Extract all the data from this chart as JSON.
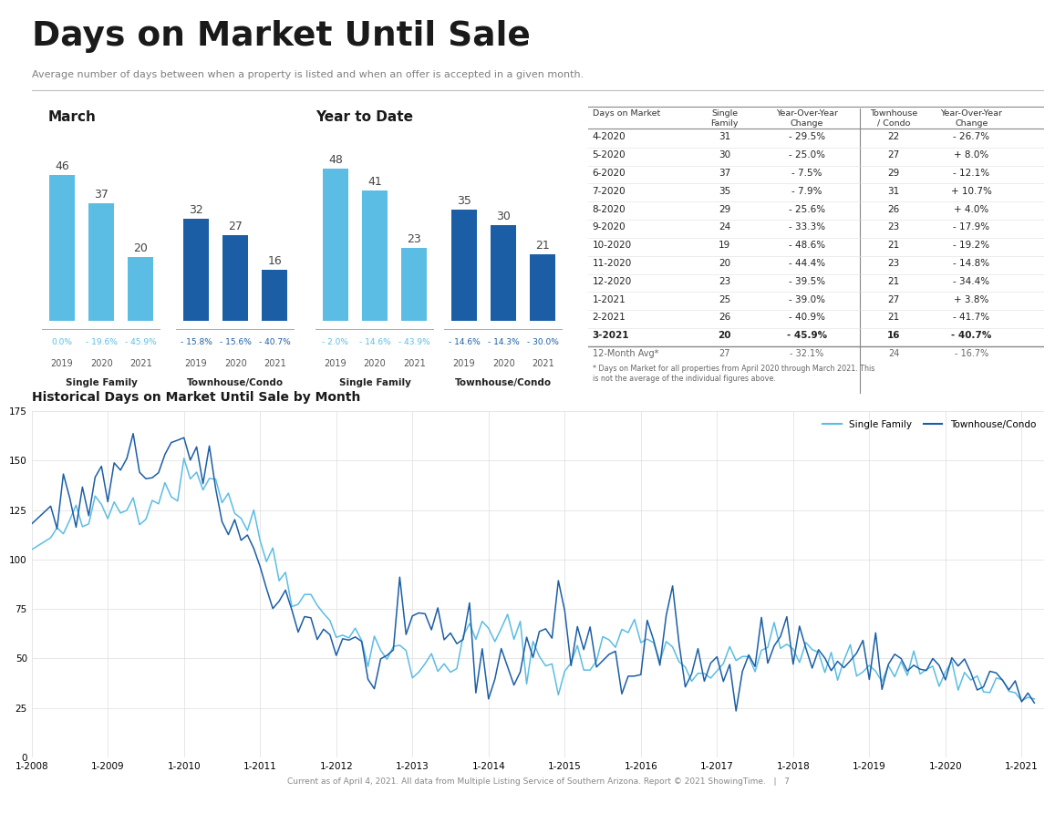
{
  "title": "Days on Market Until Sale",
  "subtitle": "Average number of days between when a property is listed and when an offer is accepted in a given month.",
  "title_color": "#1a1a1a",
  "subtitle_color": "#808080",
  "march_sf_values": [
    46,
    37,
    20
  ],
  "march_tc_values": [
    32,
    27,
    16
  ],
  "march_sf_pcts": [
    "0.0%",
    "- 19.6%",
    "- 45.9%"
  ],
  "march_tc_pcts": [
    "- 15.8%",
    "- 15.6%",
    "- 40.7%"
  ],
  "ytd_sf_values": [
    48,
    41,
    23
  ],
  "ytd_tc_values": [
    35,
    30,
    21
  ],
  "ytd_sf_pcts": [
    "- 2.0%",
    "- 14.6%",
    "- 43.9%"
  ],
  "ytd_tc_pcts": [
    "- 14.6%",
    "- 14.3%",
    "- 30.0%"
  ],
  "years": [
    "2019",
    "2020",
    "2021"
  ],
  "light_blue": "#5bbde4",
  "dark_blue": "#1b5ea6",
  "pct_color_sf": "#5bbde4",
  "pct_color_tc": "#1b5ea6",
  "table_rows": [
    [
      "4-2020",
      "31",
      "- 29.5%",
      "22",
      "- 26.7%"
    ],
    [
      "5-2020",
      "30",
      "- 25.0%",
      "27",
      "+ 8.0%"
    ],
    [
      "6-2020",
      "37",
      "- 7.5%",
      "29",
      "- 12.1%"
    ],
    [
      "7-2020",
      "35",
      "- 7.9%",
      "31",
      "+ 10.7%"
    ],
    [
      "8-2020",
      "29",
      "- 25.6%",
      "26",
      "+ 4.0%"
    ],
    [
      "9-2020",
      "24",
      "- 33.3%",
      "23",
      "- 17.9%"
    ],
    [
      "10-2020",
      "19",
      "- 48.6%",
      "21",
      "- 19.2%"
    ],
    [
      "11-2020",
      "20",
      "- 44.4%",
      "23",
      "- 14.8%"
    ],
    [
      "12-2020",
      "23",
      "- 39.5%",
      "21",
      "- 34.4%"
    ],
    [
      "1-2021",
      "25",
      "- 39.0%",
      "27",
      "+ 3.8%"
    ],
    [
      "2-2021",
      "26",
      "- 40.9%",
      "21",
      "- 41.7%"
    ],
    [
      "3-2021",
      "20",
      "- 45.9%",
      "16",
      "- 40.7%"
    ],
    [
      "12-Month Avg*",
      "27",
      "- 32.1%",
      "24",
      "- 16.7%"
    ]
  ],
  "table_headers": [
    "Days on Market",
    "Single\nFamily",
    "Year-Over-Year\nChange",
    "Townhouse\n/ Condo",
    "Year-Over-Year\nChange"
  ],
  "bold_row_index": 11,
  "avg_row_index": 12,
  "line_chart_note": "* Days on Market for all properties from April 2020 through March 2021. This\nis not the average of the individual figures above.",
  "footer": "Current as of April 4, 2021. All data from Multiple Listing Service of Southern Arizona. Report © 2021 ShowingTime.   |   7",
  "sf_line_color": "#5bbde4",
  "tc_line_color": "#1b5ea6",
  "line_title": "Historical Days on Market Until Sale by Month",
  "line_xlabel_ticks": [
    "1-2008",
    "1-2009",
    "1-2010",
    "1-2011",
    "1-2012",
    "1-2013",
    "1-2014",
    "1-2015",
    "1-2016",
    "1-2017",
    "1-2018",
    "1-2019",
    "1-2020",
    "1-2021"
  ],
  "line_ylim": [
    0,
    175
  ],
  "line_yticks": [
    0,
    25,
    50,
    75,
    100,
    125,
    150,
    175
  ]
}
